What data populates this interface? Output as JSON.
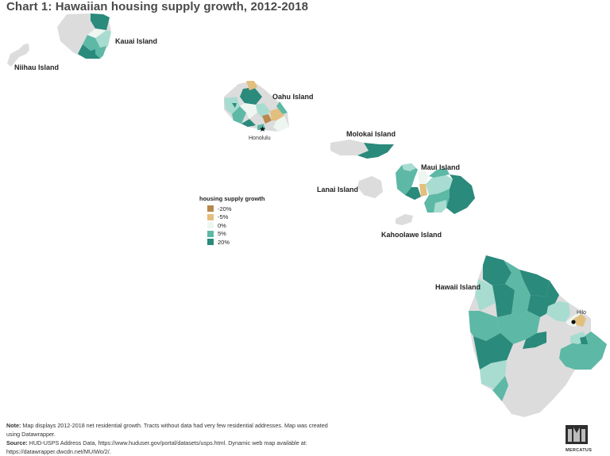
{
  "title": "Chart 1: Hawaiian housing supply growth, 2012-2018",
  "islands": [
    {
      "id": "kauai",
      "label": "Kauai Island"
    },
    {
      "id": "niihau",
      "label": "Niihau Island"
    },
    {
      "id": "oahu",
      "label": "Oahu Island"
    },
    {
      "id": "molokai",
      "label": "Molokai Island"
    },
    {
      "id": "maui",
      "label": "Maui Island"
    },
    {
      "id": "lanai",
      "label": "Lanai Island"
    },
    {
      "id": "kahoolawe",
      "label": "Kahoolawe Island"
    },
    {
      "id": "hawaii",
      "label": "Hawaii Island"
    }
  ],
  "cities": [
    {
      "id": "honolulu",
      "label": "Honolulu"
    },
    {
      "id": "hilo",
      "label": "Hilo"
    }
  ],
  "legend": {
    "title": "housing supply growth",
    "items": [
      {
        "label": "-20%",
        "color": "#b8894a"
      },
      {
        "label": "-5%",
        "color": "#e2bf7e"
      },
      {
        "label": "0%",
        "color": "#eef6f1"
      },
      {
        "label": "5%",
        "color": "#5db8a6"
      },
      {
        "label": "20%",
        "color": "#2a8a7c"
      }
    ]
  },
  "colors": {
    "no_data": "#dcdcdc",
    "strong_growth": "#2a8a7c",
    "moderate_growth": "#5db8a6",
    "light_growth": "#a8dcd0",
    "no_growth": "#eef6f1",
    "decline": "#e2bf7e",
    "strong_decline": "#b8894a"
  },
  "note": {
    "note_label": "Note:",
    "note_text": " Map displays 2012-2018 net residential growth. Tracts without data had very few residential addresses. Map was created using Datawrapper.",
    "source_label": "Source:",
    "source_text": " HUD-USPS Address Data, https://www.huduser.gov/portal/datasets/usps.html. Dynamic web map available at: https://datawrapper.dwcdn.net/MUIWo/2/."
  },
  "logo": {
    "text": "MERCATUS",
    "icon": "mercatus-logo-icon"
  }
}
